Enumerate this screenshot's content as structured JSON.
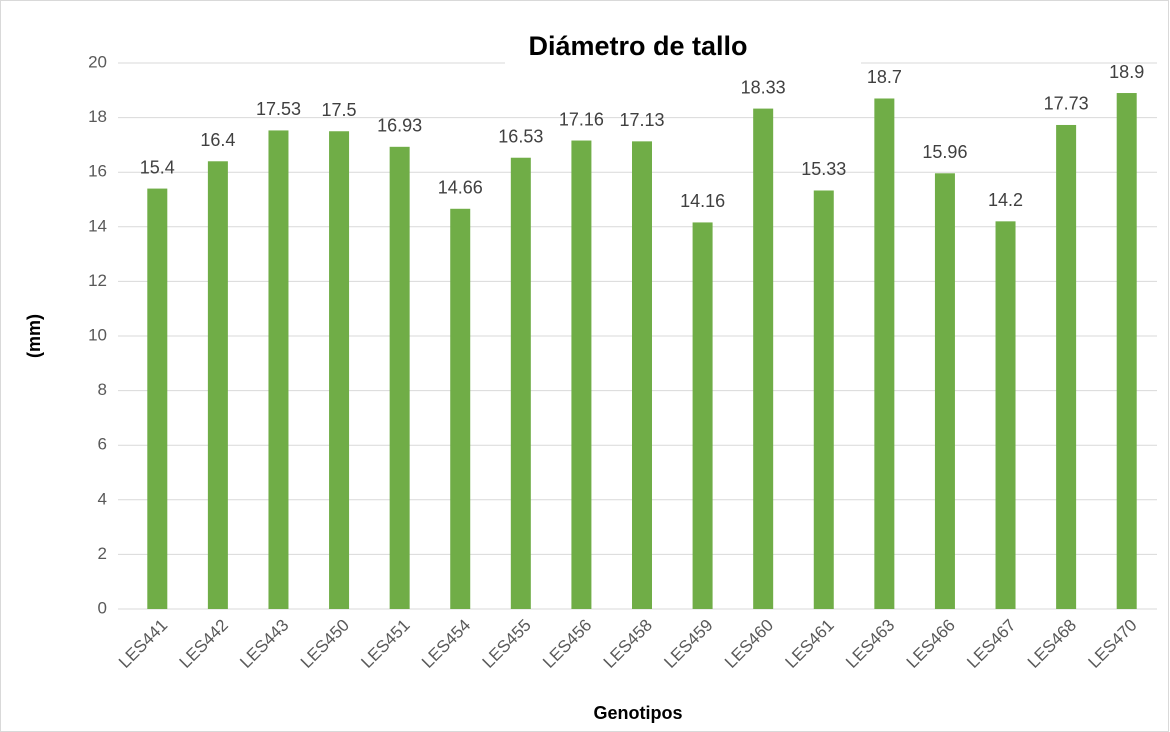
{
  "chart_data": {
    "type": "bar",
    "title": "Diámetro de tallo",
    "x_label": "Genotipos",
    "y_label": "(mm)",
    "categories": [
      "LES441",
      "LES442",
      "LES443",
      "LES450",
      "LES451",
      "LES454",
      "LES455",
      "LES456",
      "LES458",
      "LES459",
      "LES460",
      "LES461",
      "LES463",
      "LES466",
      "LES467",
      "LES468",
      "LES470"
    ],
    "values": [
      15.4,
      16.4,
      17.53,
      17.5,
      16.93,
      14.66,
      16.53,
      17.16,
      17.13,
      14.16,
      18.33,
      15.33,
      18.7,
      15.96,
      14.2,
      17.73,
      18.9
    ],
    "color": "#70ad47",
    "ylim": [
      0,
      20
    ],
    "yticks": [
      0,
      2,
      4,
      6,
      8,
      10,
      12,
      14,
      16,
      18,
      20
    ],
    "grid": true
  }
}
